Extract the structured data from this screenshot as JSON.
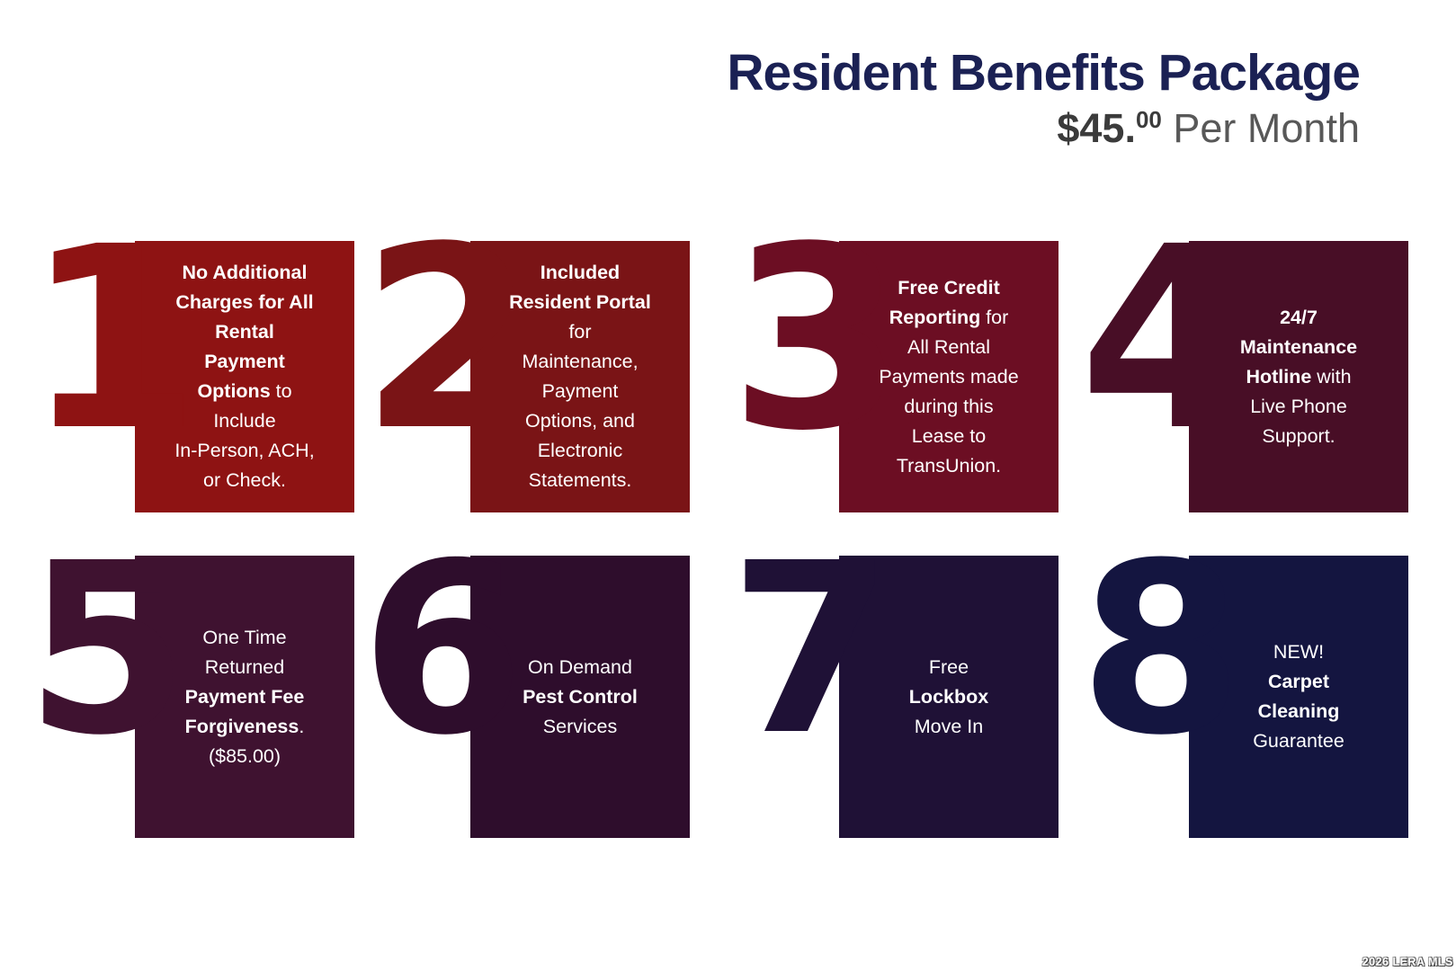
{
  "header": {
    "title": "Resident Benefits Package",
    "price": "$45.",
    "price_cents": "00",
    "price_period": " Per Month"
  },
  "colors": {
    "title": "#1b2154",
    "price": "#3b3b3b",
    "period": "#585858",
    "card_text": "#ffffff"
  },
  "watermark": "2026 LERA MLS",
  "cards": [
    {
      "number": "1",
      "color": "#8e1313",
      "lines": [
        [
          {
            "t": "No Additional",
            "b": true
          }
        ],
        [
          {
            "t": "Charges for All",
            "b": true
          }
        ],
        [
          {
            "t": "Rental",
            "b": true
          }
        ],
        [
          {
            "t": "Payment",
            "b": true
          }
        ],
        [
          {
            "t": "Options",
            "b": true
          },
          {
            "t": " to",
            "b": false
          }
        ],
        [
          {
            "t": "Include",
            "b": false
          }
        ],
        [
          {
            "t": "In-Person, ACH,",
            "b": false
          }
        ],
        [
          {
            "t": "or Check.",
            "b": false
          }
        ]
      ]
    },
    {
      "number": "2",
      "color": "#7a1416",
      "lines": [
        [
          {
            "t": "Included",
            "b": true
          }
        ],
        [
          {
            "t": "Resident Portal",
            "b": true
          }
        ],
        [
          {
            "t": "for",
            "b": false
          }
        ],
        [
          {
            "t": "Maintenance,",
            "b": false
          }
        ],
        [
          {
            "t": "Payment",
            "b": false
          }
        ],
        [
          {
            "t": "Options, and",
            "b": false
          }
        ],
        [
          {
            "t": "Electronic",
            "b": false
          }
        ],
        [
          {
            "t": "Statements.",
            "b": false
          }
        ]
      ]
    },
    {
      "number": "3",
      "color": "#6c0e23",
      "lines": [
        [
          {
            "t": "Free Credit",
            "b": true
          }
        ],
        [
          {
            "t": "Reporting",
            "b": true
          },
          {
            "t": " for",
            "b": false
          }
        ],
        [
          {
            "t": "All Rental",
            "b": false
          }
        ],
        [
          {
            "t": "Payments made",
            "b": false
          }
        ],
        [
          {
            "t": "during this",
            "b": false
          }
        ],
        [
          {
            "t": "Lease to",
            "b": false
          }
        ],
        [
          {
            "t": "TransUnion.",
            "b": false
          }
        ]
      ]
    },
    {
      "number": "4",
      "color": "#480e26",
      "lines": [
        [
          {
            "t": "24/7",
            "b": true
          }
        ],
        [
          {
            "t": "Maintenance",
            "b": true
          }
        ],
        [
          {
            "t": "Hotline",
            "b": true
          },
          {
            "t": " with",
            "b": false
          }
        ],
        [
          {
            "t": "Live Phone",
            "b": false
          }
        ],
        [
          {
            "t": "Support.",
            "b": false
          }
        ]
      ]
    },
    {
      "number": "5",
      "color": "#3f1230",
      "lines": [
        [
          {
            "t": "One Time",
            "b": false
          }
        ],
        [
          {
            "t": "Returned",
            "b": false
          }
        ],
        [
          {
            "t": "Payment Fee",
            "b": true
          }
        ],
        [
          {
            "t": "Forgiveness",
            "b": true
          },
          {
            "t": ".",
            "b": false
          }
        ],
        [
          {
            "t": "($85.00)",
            "b": false
          }
        ]
      ]
    },
    {
      "number": "6",
      "color": "#2e0d2c",
      "lines": [
        [
          {
            "t": "On Demand",
            "b": false
          }
        ],
        [
          {
            "t": "Pest Control",
            "b": true
          }
        ],
        [
          {
            "t": "Services",
            "b": false
          }
        ]
      ]
    },
    {
      "number": "7",
      "color": "#1f1136",
      "lines": [
        [
          {
            "t": "Free",
            "b": false
          }
        ],
        [
          {
            "t": "Lockbox",
            "b": true
          }
        ],
        [
          {
            "t": "Move In",
            "b": false
          }
        ]
      ]
    },
    {
      "number": "8",
      "color": "#141540",
      "lines": [
        [
          {
            "t": "NEW!",
            "b": false
          }
        ],
        [
          {
            "t": "Carpet",
            "b": true
          }
        ],
        [
          {
            "t": "Cleaning",
            "b": true
          }
        ],
        [
          {
            "t": "Guarantee",
            "b": false
          }
        ]
      ]
    }
  ]
}
